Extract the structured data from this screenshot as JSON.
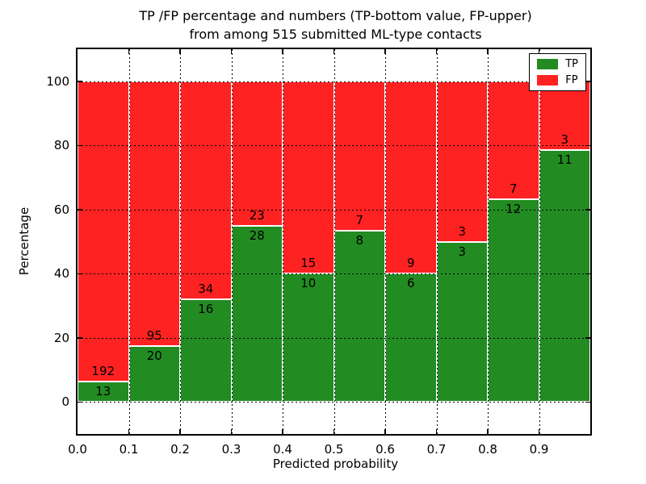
{
  "figure": {
    "title_line1": "TP /FP percentage and numbers (TP-bottom value, FP-upper)",
    "title_line2": "from among 515 submitted ML-type contacts",
    "xlabel": "Predicted probability",
    "ylabel": "Percentage"
  },
  "legend": {
    "entries": [
      {
        "label": "TP",
        "color": "#228b22"
      },
      {
        "label": "FP",
        "color": "#ff2222"
      }
    ]
  },
  "chart_data": {
    "type": "bar",
    "stacked": true,
    "normalized_to_percent": true,
    "title": "TP /FP percentage and numbers (TP-bottom value, FP-upper) from among 515 submitted ML-type contacts",
    "xlabel": "Predicted probability",
    "ylabel": "Percentage",
    "total_contacts": 515,
    "bin_edges": [
      0.0,
      0.1,
      0.2,
      0.3,
      0.4,
      0.5,
      0.6,
      0.7,
      0.8,
      0.9,
      1.0
    ],
    "x_tick_labels": [
      "0.0",
      "0.1",
      "0.2",
      "0.3",
      "0.4",
      "0.5",
      "0.6",
      "0.7",
      "0.8",
      "0.9"
    ],
    "y_ticks": [
      0,
      20,
      40,
      60,
      80,
      100
    ],
    "y_tick_labels": [
      "0",
      "20",
      "40",
      "60",
      "80",
      "100"
    ],
    "xlim": [
      0.0,
      1.0
    ],
    "ylim": [
      -10,
      110
    ],
    "grid": "dotted-black-both-axes",
    "legend_position": "upper right",
    "series": [
      {
        "name": "TP",
        "color": "#228b22",
        "counts": [
          13,
          20,
          16,
          28,
          10,
          8,
          6,
          3,
          12,
          11
        ]
      },
      {
        "name": "FP",
        "color": "#ff2222",
        "counts": [
          192,
          95,
          34,
          23,
          15,
          7,
          9,
          3,
          7,
          3
        ]
      }
    ],
    "tp_percent": [
      6.3,
      17.4,
      32.0,
      54.9,
      40.0,
      53.3,
      40.0,
      50.0,
      63.2,
      78.6
    ],
    "fp_percent": [
      93.7,
      82.6,
      68.0,
      45.1,
      60.0,
      46.7,
      60.0,
      50.0,
      36.8,
      21.4
    ]
  }
}
